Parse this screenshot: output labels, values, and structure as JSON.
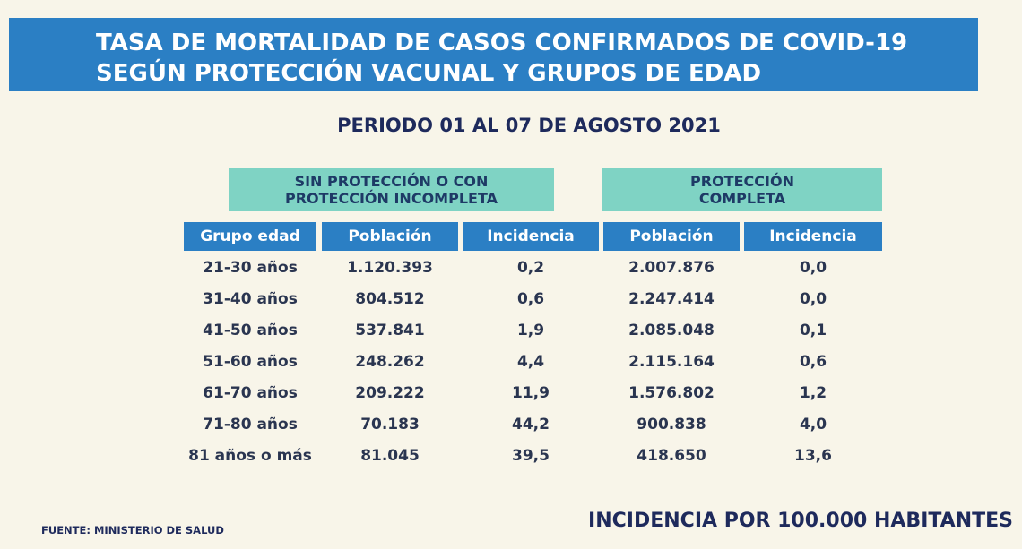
{
  "title": {
    "line1": "TASA DE MORTALIDAD DE CASOS CONFIRMADOS DE COVID-19",
    "line2": "SEGÚN PROTECCIÓN VACUNAL Y GRUPOS DE EDAD"
  },
  "period": "PERIODO 01 AL 07 DE AGOSTO 2021",
  "group_headers": {
    "sin_proteccion": [
      "SIN PROTECCIÓN O CON",
      "PROTECCIÓN INCOMPLETA"
    ],
    "proteccion_completa": [
      "PROTECCIÓN",
      "COMPLETA"
    ]
  },
  "columns": [
    "Grupo edad",
    "Población",
    "Incidencia",
    "Población",
    "Incidencia"
  ],
  "rows": [
    [
      "21-30 años",
      "1.120.393",
      "0,2",
      "2.007.876",
      "0,0"
    ],
    [
      "31-40 años",
      "804.512",
      "0,6",
      "2.247.414",
      "0,0"
    ],
    [
      "41-50 años",
      "537.841",
      "1,9",
      "2.085.048",
      "0,1"
    ],
    [
      "51-60 años",
      "248.262",
      "4,4",
      "2.115.164",
      "0,6"
    ],
    [
      "61-70 años",
      "209.222",
      "11,9",
      "1.576.802",
      "1,2"
    ],
    [
      "71-80 años",
      "70.183",
      "44,2",
      "900.838",
      "4,0"
    ],
    [
      "81 años o más",
      "81.045",
      "39,5",
      "418.650",
      "13,6"
    ]
  ],
  "footer": {
    "source": "FUENTE: MINISTERIO DE SALUD",
    "note": "INCIDENCIA POR 100.000 HABITANTES"
  },
  "colors": {
    "banner_blue": "#2b7fc4",
    "group_teal": "#7fd3c4",
    "background": "#f8f5e9",
    "text_navy": "#1e2a5c"
  }
}
